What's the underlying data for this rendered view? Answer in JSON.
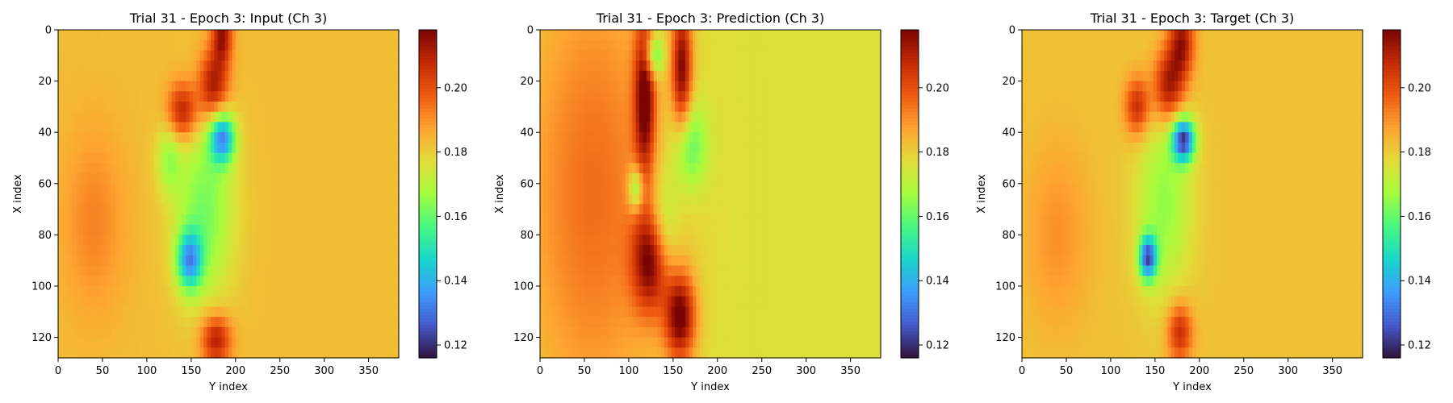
{
  "chart_data": [
    {
      "type": "heatmap",
      "title": "Trial 31 - Epoch 3: Input (Ch 3)",
      "xlabel": "Y index",
      "ylabel": "X index",
      "xlim": [
        0,
        384
      ],
      "ylim": [
        128,
        0
      ],
      "xticks": [
        "0",
        "50",
        "100",
        "150",
        "200",
        "250",
        "300",
        "350"
      ],
      "yticks": [
        "0",
        "20",
        "40",
        "60",
        "80",
        "100",
        "120"
      ],
      "colorbar": {
        "vmin": 0.116,
        "vmax": 0.218,
        "ticks": [
          "0.12",
          "0.14",
          "0.16",
          "0.18",
          "0.20"
        ],
        "colormap": "turbo"
      },
      "background_value": 0.183,
      "features": [
        {
          "x": 175,
          "y": 22,
          "value": 0.214,
          "sx": 12,
          "sy": 10
        },
        {
          "x": 140,
          "y": 32,
          "value": 0.212,
          "sx": 12,
          "sy": 8
        },
        {
          "x": 185,
          "y": 2,
          "value": 0.213,
          "sx": 8,
          "sy": 8
        },
        {
          "x": 185,
          "y": 42,
          "value": 0.138,
          "sx": 10,
          "sy": 7
        },
        {
          "x": 148,
          "y": 90,
          "value": 0.143,
          "sx": 10,
          "sy": 8
        },
        {
          "x": 165,
          "y": 70,
          "value": 0.162,
          "sx": 24,
          "sy": 26
        },
        {
          "x": 125,
          "y": 50,
          "value": 0.168,
          "sx": 10,
          "sy": 10
        },
        {
          "x": 178,
          "y": 121,
          "value": 0.212,
          "sx": 12,
          "sy": 7
        },
        {
          "x": 40,
          "y": 75,
          "value": 0.192,
          "sx": 25,
          "sy": 25
        }
      ]
    },
    {
      "type": "heatmap",
      "title": "Trial 31 - Epoch 3: Prediction (Ch 3)",
      "xlabel": "Y index",
      "ylabel": "X index",
      "xlim": [
        0,
        384
      ],
      "ylim": [
        128,
        0
      ],
      "xticks": [
        "0",
        "50",
        "100",
        "150",
        "200",
        "250",
        "300",
        "350"
      ],
      "yticks": [
        "0",
        "20",
        "40",
        "60",
        "80",
        "100",
        "120"
      ],
      "colorbar": {
        "vmin": 0.116,
        "vmax": 0.218,
        "ticks": [
          "0.12",
          "0.14",
          "0.16",
          "0.18",
          "0.20"
        ],
        "colormap": "turbo"
      },
      "background_value": 0.176,
      "features": [
        {
          "x": 60,
          "y": 64,
          "value": 0.195,
          "sx": 60,
          "sy": 70
        },
        {
          "x": 118,
          "y": 25,
          "value": 0.215,
          "sx": 8,
          "sy": 22
        },
        {
          "x": 160,
          "y": 15,
          "value": 0.214,
          "sx": 8,
          "sy": 18
        },
        {
          "x": 128,
          "y": 10,
          "value": 0.148,
          "sx": 8,
          "sy": 6
        },
        {
          "x": 108,
          "y": 62,
          "value": 0.15,
          "sx": 6,
          "sy": 6
        },
        {
          "x": 125,
          "y": 90,
          "value": 0.214,
          "sx": 14,
          "sy": 14
        },
        {
          "x": 158,
          "y": 112,
          "value": 0.217,
          "sx": 12,
          "sy": 12
        },
        {
          "x": 168,
          "y": 45,
          "value": 0.155,
          "sx": 14,
          "sy": 12
        },
        {
          "x": 138,
          "y": 78,
          "value": 0.158,
          "sx": 12,
          "sy": 15
        }
      ]
    },
    {
      "type": "heatmap",
      "title": "Trial 31 - Epoch 3: Target (Ch 3)",
      "xlabel": "Y index",
      "ylabel": "X index",
      "xlim": [
        0,
        384
      ],
      "ylim": [
        128,
        0
      ],
      "xticks": [
        "0",
        "50",
        "100",
        "150",
        "200",
        "250",
        "300",
        "350"
      ],
      "yticks": [
        "0",
        "20",
        "40",
        "60",
        "80",
        "100",
        "120"
      ],
      "colorbar": {
        "vmin": 0.116,
        "vmax": 0.218,
        "ticks": [
          "0.12",
          "0.14",
          "0.16",
          "0.18",
          "0.20"
        ],
        "colormap": "turbo"
      },
      "background_value": 0.182,
      "features": [
        {
          "x": 165,
          "y": 22,
          "value": 0.213,
          "sx": 12,
          "sy": 10
        },
        {
          "x": 130,
          "y": 30,
          "value": 0.208,
          "sx": 10,
          "sy": 8
        },
        {
          "x": 180,
          "y": 5,
          "value": 0.213,
          "sx": 10,
          "sy": 10
        },
        {
          "x": 182,
          "y": 43,
          "value": 0.125,
          "sx": 9,
          "sy": 6
        },
        {
          "x": 142,
          "y": 89,
          "value": 0.13,
          "sx": 7,
          "sy": 6
        },
        {
          "x": 160,
          "y": 68,
          "value": 0.165,
          "sx": 22,
          "sy": 26
        },
        {
          "x": 178,
          "y": 118,
          "value": 0.208,
          "sx": 10,
          "sy": 8
        },
        {
          "x": 40,
          "y": 80,
          "value": 0.19,
          "sx": 25,
          "sy": 25
        }
      ]
    }
  ]
}
